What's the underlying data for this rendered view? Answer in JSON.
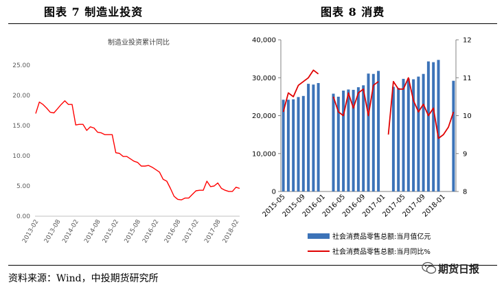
{
  "figures": {
    "left_title": "图表 7 制造业投资",
    "right_title": "图表 8 消费"
  },
  "footer": {
    "source": "资料来源：Wind，中投期货研究所",
    "watermark": "期货日报"
  },
  "chart_data": [
    {
      "type": "line",
      "title": "制造业投资累计同比",
      "xlabel": "",
      "ylabel": "",
      "ylim": [
        0,
        25
      ],
      "yticks": [
        "0.00",
        "5.00",
        "10.00",
        "15.00",
        "20.00",
        "25.00"
      ],
      "x_ticks": [
        "2013-02",
        "2013-08",
        "2014-02",
        "2014-08",
        "2015-02",
        "2015-08",
        "2016-02",
        "2016-08",
        "2017-02",
        "2017-08",
        "2018-02"
      ],
      "grid": false,
      "legend": "none",
      "color": "#ff0000",
      "x": [
        "2013-02",
        "2013-03",
        "2013-04",
        "2013-05",
        "2013-06",
        "2013-07",
        "2013-08",
        "2013-09",
        "2013-10",
        "2013-11",
        "2013-12",
        "2014-02",
        "2014-03",
        "2014-04",
        "2014-05",
        "2014-06",
        "2014-07",
        "2014-08",
        "2014-09",
        "2014-10",
        "2014-11",
        "2014-12",
        "2015-02",
        "2015-03",
        "2015-04",
        "2015-05",
        "2015-06",
        "2015-07",
        "2015-08",
        "2015-09",
        "2015-10",
        "2015-11",
        "2015-12",
        "2016-02",
        "2016-03",
        "2016-04",
        "2016-05",
        "2016-06",
        "2016-07",
        "2016-08",
        "2016-09",
        "2016-10",
        "2016-11",
        "2016-12",
        "2017-02",
        "2017-03",
        "2017-04",
        "2017-05",
        "2017-06",
        "2017-07",
        "2017-08",
        "2017-09",
        "2017-10",
        "2017-11",
        "2017-12",
        "2018-02",
        "2018-03"
      ],
      "values": [
        17.0,
        18.9,
        18.5,
        17.9,
        17.2,
        17.1,
        17.8,
        18.5,
        19.1,
        18.5,
        18.5,
        15.1,
        15.2,
        15.2,
        14.2,
        14.8,
        14.6,
        13.9,
        13.8,
        13.5,
        13.5,
        13.5,
        10.5,
        10.4,
        9.9,
        9.9,
        9.5,
        9.1,
        8.9,
        8.3,
        8.3,
        8.4,
        8.1,
        7.7,
        7.3,
        6.1,
        5.8,
        4.6,
        3.3,
        2.8,
        2.7,
        3.0,
        3.0,
        3.6,
        4.2,
        4.3,
        4.3,
        5.8,
        4.9,
        5.0,
        5.5,
        4.6,
        4.3,
        4.1,
        4.1,
        4.8,
        4.6
      ]
    },
    {
      "type": "bar",
      "title": "",
      "xlabel": "",
      "ylabel": "",
      "ylim": [
        0,
        40000
      ],
      "y2lim": [
        8,
        12
      ],
      "yticks": [
        "0",
        "10,000",
        "20,000",
        "30,000",
        "40,000"
      ],
      "y2ticks": [
        "8",
        "9",
        "10",
        "11",
        "12"
      ],
      "x_ticks": [
        "2015-05",
        "2015-09",
        "2016-01",
        "2016-05",
        "2016-09",
        "2017-01",
        "2017-05",
        "2017-09",
        "2018-01"
      ],
      "grid": false,
      "legend": "bottom",
      "x": [
        "2015-05",
        "2015-06",
        "2015-07",
        "2015-08",
        "2015-09",
        "2015-10",
        "2015-11",
        "2015-12",
        "2016-01",
        "2016-02",
        "2016-03",
        "2016-04",
        "2016-05",
        "2016-06",
        "2016-07",
        "2016-08",
        "2016-09",
        "2016-10",
        "2016-11",
        "2016-12",
        "2017-01",
        "2017-02",
        "2017-03",
        "2017-04",
        "2017-05",
        "2017-06",
        "2017-07",
        "2017-08",
        "2017-09",
        "2017-10",
        "2017-11",
        "2017-12",
        "2018-01",
        "2018-02",
        "2018-03"
      ],
      "series": [
        {
          "name": "社会消费品零售总额:当月值亿元",
          "type": "bar",
          "axis": "left",
          "color": "#3c73b8",
          "values": [
            24200,
            24200,
            24300,
            24900,
            25200,
            28400,
            28200,
            28600,
            null,
            null,
            25800,
            25000,
            26600,
            26900,
            26800,
            27500,
            28000,
            31100,
            31000,
            31800,
            null,
            null,
            27600,
            27300,
            29700,
            29800,
            29600,
            30300,
            31000,
            34300,
            34100,
            34700,
            null,
            null,
            29200
          ]
        },
        {
          "name": "社会消费品零售总额:当月同比%",
          "type": "line",
          "axis": "right",
          "color": "#e00000",
          "values": [
            10.1,
            10.6,
            10.5,
            10.8,
            10.9,
            11.0,
            11.2,
            11.1,
            null,
            null,
            10.5,
            10.1,
            10.0,
            10.6,
            10.2,
            10.6,
            10.7,
            10.0,
            10.8,
            10.9,
            null,
            9.5,
            10.9,
            10.7,
            10.7,
            11.0,
            10.4,
            10.1,
            10.3,
            10.0,
            10.2,
            9.4,
            9.5,
            9.7,
            10.1
          ]
        }
      ]
    }
  ]
}
